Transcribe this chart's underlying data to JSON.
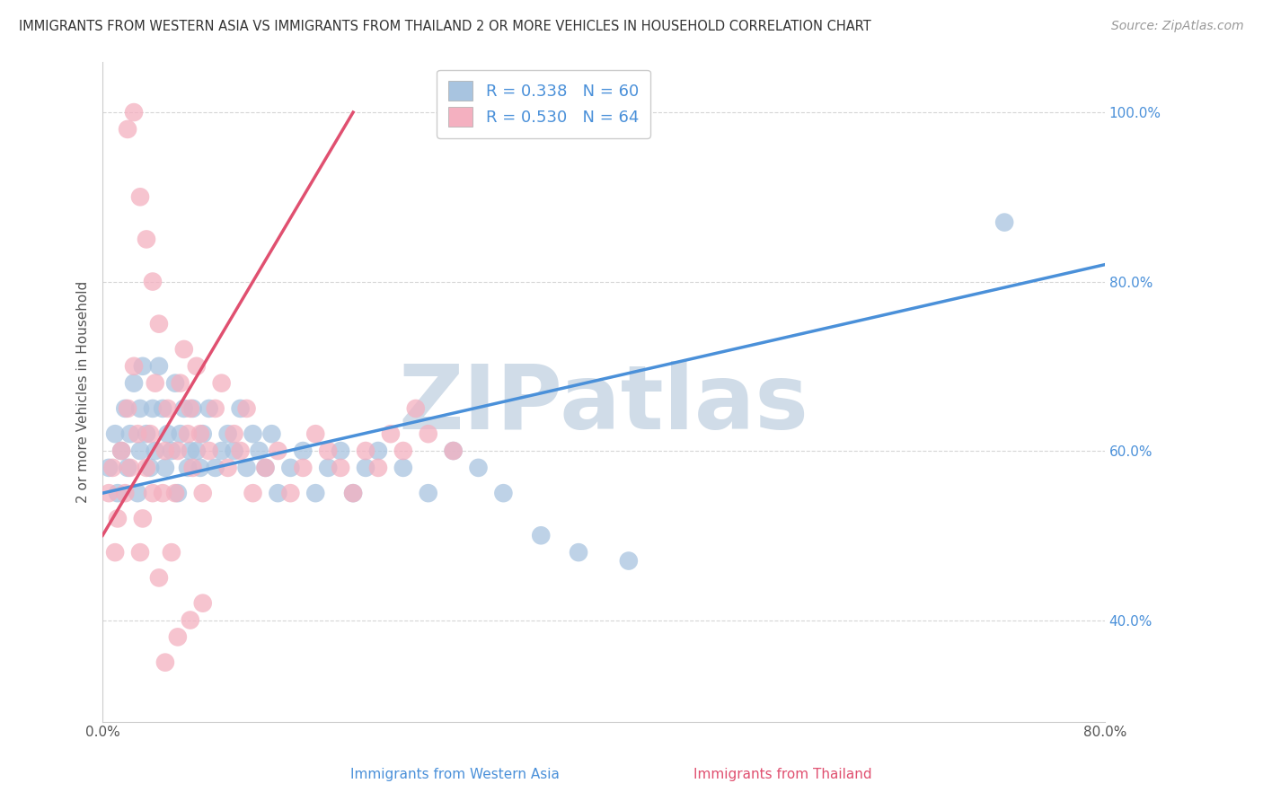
{
  "title": "IMMIGRANTS FROM WESTERN ASIA VS IMMIGRANTS FROM THAILAND 2 OR MORE VEHICLES IN HOUSEHOLD CORRELATION CHART",
  "source": "Source: ZipAtlas.com",
  "xlabel_bottom": [
    "Immigrants from Western Asia",
    "Immigrants from Thailand"
  ],
  "ylabel": "2 or more Vehicles in Household",
  "xlim": [
    0.0,
    0.8
  ],
  "ylim": [
    0.28,
    1.06
  ],
  "xticks": [
    0.0,
    0.1,
    0.2,
    0.3,
    0.4,
    0.5,
    0.6,
    0.7,
    0.8
  ],
  "xticklabels": [
    "0.0%",
    "",
    "",
    "",
    "",
    "",
    "",
    "",
    "80.0%"
  ],
  "yticks": [
    0.4,
    0.6,
    0.8,
    1.0
  ],
  "yticklabels": [
    "40.0%",
    "60.0%",
    "80.0%",
    "100.0%"
  ],
  "blue_R": 0.338,
  "blue_N": 60,
  "pink_R": 0.53,
  "pink_N": 64,
  "blue_color": "#a8c4e0",
  "pink_color": "#f4b0c0",
  "blue_line_color": "#4a90d9",
  "pink_line_color": "#e05070",
  "watermark": "ZIPatlas",
  "watermark_color": "#d0dce8",
  "legend_blue_label": "R = 0.338   N = 60",
  "legend_pink_label": "R = 0.530   N = 64",
  "blue_line_x0": 0.0,
  "blue_line_y0": 0.55,
  "blue_line_x1": 0.8,
  "blue_line_y1": 0.82,
  "pink_line_x0": 0.0,
  "pink_line_y0": 0.5,
  "pink_line_x1": 0.2,
  "pink_line_y1": 1.0,
  "blue_scatter_x": [
    0.005,
    0.01,
    0.012,
    0.015,
    0.018,
    0.02,
    0.022,
    0.025,
    0.028,
    0.03,
    0.03,
    0.032,
    0.035,
    0.038,
    0.04,
    0.042,
    0.045,
    0.048,
    0.05,
    0.052,
    0.055,
    0.058,
    0.06,
    0.062,
    0.065,
    0.068,
    0.07,
    0.072,
    0.075,
    0.078,
    0.08,
    0.085,
    0.09,
    0.095,
    0.1,
    0.105,
    0.11,
    0.115,
    0.12,
    0.125,
    0.13,
    0.135,
    0.14,
    0.15,
    0.16,
    0.17,
    0.18,
    0.19,
    0.2,
    0.21,
    0.22,
    0.24,
    0.26,
    0.28,
    0.3,
    0.32,
    0.35,
    0.38,
    0.42,
    0.72
  ],
  "blue_scatter_y": [
    0.58,
    0.62,
    0.55,
    0.6,
    0.65,
    0.58,
    0.62,
    0.68,
    0.55,
    0.6,
    0.65,
    0.7,
    0.62,
    0.58,
    0.65,
    0.6,
    0.7,
    0.65,
    0.58,
    0.62,
    0.6,
    0.68,
    0.55,
    0.62,
    0.65,
    0.58,
    0.6,
    0.65,
    0.6,
    0.58,
    0.62,
    0.65,
    0.58,
    0.6,
    0.62,
    0.6,
    0.65,
    0.58,
    0.62,
    0.6,
    0.58,
    0.62,
    0.55,
    0.58,
    0.6,
    0.55,
    0.58,
    0.6,
    0.55,
    0.58,
    0.6,
    0.58,
    0.55,
    0.6,
    0.58,
    0.55,
    0.5,
    0.48,
    0.47,
    0.87
  ],
  "pink_scatter_x": [
    0.005,
    0.008,
    0.01,
    0.012,
    0.015,
    0.018,
    0.02,
    0.022,
    0.025,
    0.028,
    0.03,
    0.032,
    0.035,
    0.038,
    0.04,
    0.042,
    0.045,
    0.048,
    0.05,
    0.052,
    0.055,
    0.058,
    0.06,
    0.062,
    0.065,
    0.068,
    0.07,
    0.072,
    0.075,
    0.078,
    0.08,
    0.085,
    0.09,
    0.095,
    0.1,
    0.105,
    0.11,
    0.115,
    0.12,
    0.13,
    0.14,
    0.15,
    0.16,
    0.17,
    0.18,
    0.19,
    0.2,
    0.21,
    0.22,
    0.23,
    0.24,
    0.25,
    0.26,
    0.28,
    0.02,
    0.025,
    0.03,
    0.035,
    0.04,
    0.045,
    0.05,
    0.06,
    0.07,
    0.08
  ],
  "pink_scatter_y": [
    0.55,
    0.58,
    0.48,
    0.52,
    0.6,
    0.55,
    0.65,
    0.58,
    0.7,
    0.62,
    0.48,
    0.52,
    0.58,
    0.62,
    0.55,
    0.68,
    0.45,
    0.55,
    0.6,
    0.65,
    0.48,
    0.55,
    0.6,
    0.68,
    0.72,
    0.62,
    0.65,
    0.58,
    0.7,
    0.62,
    0.55,
    0.6,
    0.65,
    0.68,
    0.58,
    0.62,
    0.6,
    0.65,
    0.55,
    0.58,
    0.6,
    0.55,
    0.58,
    0.62,
    0.6,
    0.58,
    0.55,
    0.6,
    0.58,
    0.62,
    0.6,
    0.65,
    0.62,
    0.6,
    0.98,
    1.0,
    0.9,
    0.85,
    0.8,
    0.75,
    0.35,
    0.38,
    0.4,
    0.42
  ]
}
